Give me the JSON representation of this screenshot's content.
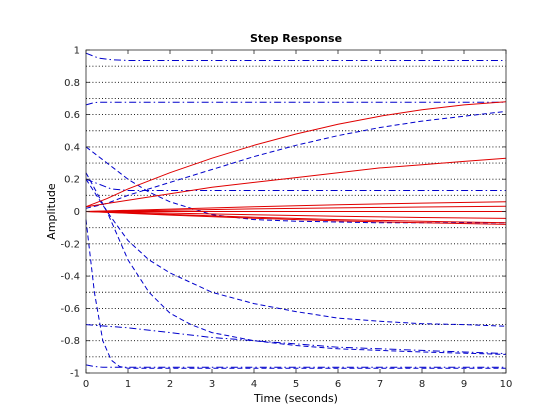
{
  "chart_data": {
    "type": "line",
    "title": "Step Response",
    "xlabel": "Time (seconds)",
    "ylabel": "Amplitude",
    "xlim": [
      0,
      10
    ],
    "ylim": [
      -1,
      1
    ],
    "xticks": [
      "0",
      "1",
      "2",
      "3",
      "4",
      "5",
      "6",
      "7",
      "8",
      "9",
      "10"
    ],
    "yticks": [
      "1",
      "0.8",
      "0.6",
      "0.4",
      "0.2",
      "0",
      "-0.2",
      "-0.4",
      "-0.6",
      "-0.8",
      "-1"
    ],
    "ytick_values": [
      1,
      0.8,
      0.6,
      0.4,
      0.2,
      0,
      -0.2,
      -0.4,
      -0.6,
      -0.8,
      -1
    ],
    "grid": "horizontal dotted",
    "colors": {
      "red_series": "#e00000",
      "blue_series": "#0000cc",
      "grid": "#000000"
    },
    "series": [
      {
        "style": "dashdot",
        "color": "#0000cc",
        "x": [
          0,
          0.3,
          0.6,
          1,
          2,
          10
        ],
        "y": [
          0.98,
          0.95,
          0.94,
          0.935,
          0.935,
          0.935
        ]
      },
      {
        "style": "dashdot",
        "color": "#0000cc",
        "x": [
          0,
          0.2,
          0.4,
          0.8,
          10
        ],
        "y": [
          0.66,
          0.675,
          0.677,
          0.677,
          0.677
        ]
      },
      {
        "style": "dashed",
        "color": "#0000cc",
        "x": [
          0,
          0.5,
          1,
          2,
          3,
          4,
          5,
          6,
          7,
          8,
          9,
          10
        ],
        "y": [
          0.02,
          0.05,
          0.1,
          0.18,
          0.26,
          0.34,
          0.41,
          0.47,
          0.52,
          0.56,
          0.59,
          0.62
        ]
      },
      {
        "style": "dashed",
        "color": "#0000cc",
        "x": [
          0,
          0.5,
          1,
          1.5,
          2,
          3,
          4,
          5,
          6,
          7,
          8,
          10
        ],
        "y": [
          0.4,
          0.3,
          0.2,
          0.12,
          0.06,
          -0.02,
          -0.05,
          -0.06,
          -0.065,
          -0.07,
          -0.07,
          -0.07
        ]
      },
      {
        "style": "dashdot",
        "color": "#0000cc",
        "x": [
          0,
          0.3,
          0.6,
          1,
          2,
          10
        ],
        "y": [
          0.2,
          0.17,
          0.14,
          0.13,
          0.13,
          0.13
        ]
      },
      {
        "style": "dashed",
        "color": "#0000cc",
        "x": [
          0,
          0.5,
          1,
          1.5,
          2,
          3,
          4,
          5,
          6,
          7,
          8,
          9,
          10
        ],
        "y": [
          0.2,
          0.0,
          -0.18,
          -0.3,
          -0.38,
          -0.5,
          -0.57,
          -0.62,
          -0.66,
          -0.68,
          -0.695,
          -0.7,
          -0.71
        ]
      },
      {
        "style": "dashed",
        "color": "#0000cc",
        "x": [
          0,
          0.5,
          1,
          1.5,
          2,
          2.5,
          3,
          4,
          5,
          6,
          7,
          8,
          10
        ],
        "y": [
          0.24,
          0.0,
          -0.3,
          -0.5,
          -0.63,
          -0.7,
          -0.75,
          -0.8,
          -0.83,
          -0.85,
          -0.86,
          -0.87,
          -0.885
        ]
      },
      {
        "style": "dashed",
        "color": "#0000cc",
        "x": [
          0,
          0.2,
          0.4,
          0.6,
          0.8,
          1,
          1.5,
          2,
          10
        ],
        "y": [
          -0.05,
          -0.5,
          -0.8,
          -0.92,
          -0.96,
          -0.97,
          -0.97,
          -0.97,
          -0.97
        ]
      },
      {
        "style": "dashdot",
        "color": "#0000cc",
        "x": [
          0,
          0.5,
          1,
          2,
          3,
          4,
          5,
          6,
          7,
          8,
          9,
          10
        ],
        "y": [
          -0.7,
          -0.71,
          -0.72,
          -0.75,
          -0.78,
          -0.8,
          -0.82,
          -0.84,
          -0.85,
          -0.86,
          -0.87,
          -0.88
        ]
      },
      {
        "style": "dashdot",
        "color": "#0000cc",
        "x": [
          0,
          0.2,
          0.4,
          1,
          10
        ],
        "y": [
          -0.95,
          -0.96,
          -0.965,
          -0.965,
          -0.965
        ]
      },
      {
        "style": "solid",
        "color": "#e00000",
        "x": [
          0,
          0.5,
          1,
          2,
          3,
          4,
          5,
          6,
          7,
          8,
          9,
          10
        ],
        "y": [
          0.03,
          0.08,
          0.14,
          0.24,
          0.33,
          0.41,
          0.48,
          0.54,
          0.59,
          0.63,
          0.66,
          0.68
        ]
      },
      {
        "style": "solid",
        "color": "#e00000",
        "x": [
          0,
          1,
          2,
          3,
          4,
          5,
          6,
          7,
          8,
          9,
          10
        ],
        "y": [
          0.03,
          0.07,
          0.11,
          0.15,
          0.18,
          0.21,
          0.24,
          0.27,
          0.29,
          0.31,
          0.33
        ]
      },
      {
        "style": "solid",
        "color": "#e00000",
        "x": [
          0,
          2,
          4,
          6,
          8,
          10
        ],
        "y": [
          0.0,
          0.015,
          0.03,
          0.042,
          0.052,
          0.06
        ]
      },
      {
        "style": "solid",
        "color": "#e00000",
        "x": [
          0,
          2,
          4,
          6,
          8,
          10
        ],
        "y": [
          0.0,
          0.008,
          0.016,
          0.022,
          0.028,
          0.033
        ]
      },
      {
        "style": "solid",
        "color": "#e00000",
        "x": [
          0,
          2,
          4,
          6,
          8,
          10
        ],
        "y": [
          0.0,
          0.0,
          0.0,
          0.0,
          0.0,
          0.0
        ]
      },
      {
        "style": "solid",
        "color": "#e00000",
        "x": [
          0,
          2,
          4,
          6,
          8,
          10
        ],
        "y": [
          0.0,
          -0.01,
          -0.02,
          -0.03,
          -0.037,
          -0.043
        ]
      },
      {
        "style": "solid",
        "color": "#e00000",
        "x": [
          0,
          2,
          4,
          6,
          8,
          10
        ],
        "y": [
          0.0,
          -0.018,
          -0.035,
          -0.05,
          -0.06,
          -0.07
        ]
      },
      {
        "style": "solid",
        "color": "#e00000",
        "x": [
          0,
          2,
          4,
          6,
          8,
          10
        ],
        "y": [
          0.0,
          -0.022,
          -0.042,
          -0.058,
          -0.07,
          -0.08
        ]
      }
    ]
  }
}
